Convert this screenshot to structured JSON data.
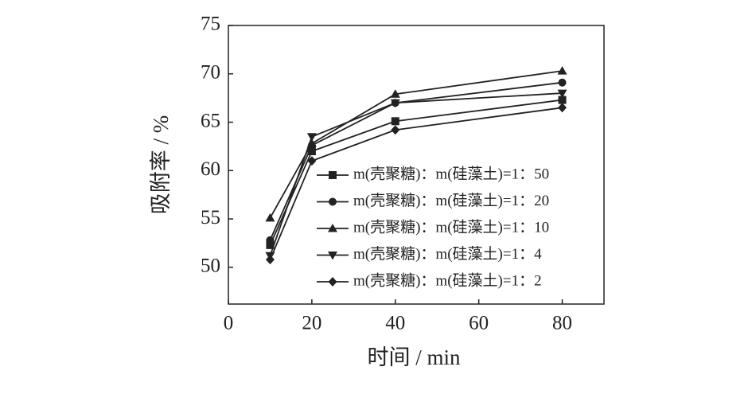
{
  "chart_data": {
    "type": "line",
    "x_label": "时间 / min",
    "y_label": "吸附率 / %",
    "x": [
      10,
      20,
      40,
      80
    ],
    "xlim": [
      0,
      90
    ],
    "xticks": [
      0,
      20,
      40,
      60,
      80
    ],
    "ylim": [
      46.2,
      75
    ],
    "yticks": [
      50,
      55,
      60,
      65,
      70,
      75
    ],
    "legend": "lower right",
    "grid": false,
    "series": [
      {
        "name": "m(壳聚糖)：m(硅藻土)=1：50",
        "color": "#222222",
        "marker": "square",
        "values": [
          52.3,
          62.0,
          65.1,
          67.3
        ]
      },
      {
        "name": "m(壳聚糖)：m(硅藻土)=1：20",
        "color": "#222222",
        "marker": "circle",
        "values": [
          52.8,
          62.6,
          67.0,
          69.1
        ]
      },
      {
        "name": "m(壳聚糖)：m(硅藻土)=1：10",
        "color": "#222222",
        "marker": "triangle-up",
        "values": [
          55.1,
          62.8,
          67.9,
          70.3
        ]
      },
      {
        "name": "m(壳聚糖)：m(硅藻土)=1：4",
        "color": "#222222",
        "marker": "triangle-down",
        "values": [
          51.2,
          63.5,
          67.0,
          68.0
        ]
      },
      {
        "name": "m(壳聚糖)：m(硅藻土)=1：2",
        "color": "#222222",
        "marker": "diamond",
        "values": [
          50.8,
          61.0,
          64.2,
          66.5
        ]
      }
    ]
  }
}
